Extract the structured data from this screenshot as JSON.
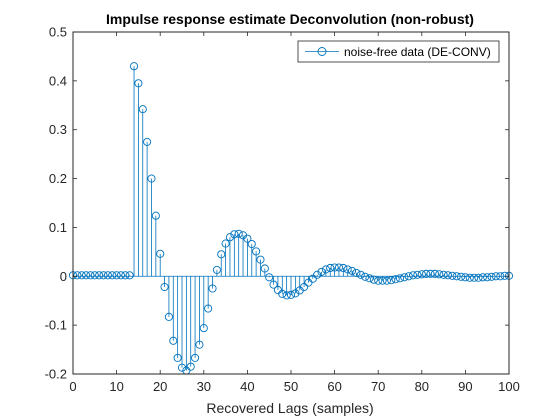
{
  "chart_data": {
    "type": "stem",
    "title": "Impulse response estimate Deconvolution (non-robust)",
    "xlabel": "Recovered Lags (samples)",
    "ylabel": "",
    "xlim": [
      0,
      100
    ],
    "ylim": [
      -0.2,
      0.5
    ],
    "x_ticks": [
      "0",
      "10",
      "20",
      "30",
      "40",
      "50",
      "60",
      "70",
      "80",
      "90",
      "100"
    ],
    "y_ticks": [
      "-0.2",
      "-0.1",
      "0",
      "0.1",
      "0.2",
      "0.3",
      "0.4",
      "0.5"
    ],
    "grid": false,
    "legend_position": "top-right",
    "series": [
      {
        "name": "noise-free data (DE-CONV)",
        "color": "#0072BD",
        "marker": "circle-open",
        "x": [
          0,
          1,
          2,
          3,
          4,
          5,
          6,
          7,
          8,
          9,
          10,
          11,
          12,
          13,
          14,
          15,
          16,
          17,
          18,
          19,
          20,
          21,
          22,
          23,
          24,
          25,
          26,
          27,
          28,
          29,
          30,
          31,
          32,
          33,
          34,
          35,
          36,
          37,
          38,
          39,
          40,
          41,
          42,
          43,
          44,
          45,
          46,
          47,
          48,
          49,
          50,
          51,
          52,
          53,
          54,
          55,
          56,
          57,
          58,
          59,
          60,
          61,
          62,
          63,
          64,
          65,
          66,
          67,
          68,
          69,
          70,
          71,
          72,
          73,
          74,
          75,
          76,
          77,
          78,
          79,
          80,
          81,
          82,
          83,
          84,
          85,
          86,
          87,
          88,
          89,
          90,
          91,
          92,
          93,
          94,
          95,
          96,
          97,
          98,
          99,
          100
        ],
        "values": [
          0.002,
          0.002,
          0.002,
          0.002,
          0.002,
          0.002,
          0.002,
          0.002,
          0.002,
          0.002,
          0.002,
          0.002,
          0.002,
          0.002,
          0.43,
          0.395,
          0.342,
          0.275,
          0.2,
          0.124,
          0.046,
          -0.022,
          -0.083,
          -0.132,
          -0.167,
          -0.187,
          -0.193,
          -0.185,
          -0.167,
          -0.14,
          -0.106,
          -0.066,
          -0.025,
          0.013,
          0.045,
          0.067,
          0.08,
          0.086,
          0.087,
          0.084,
          0.077,
          0.066,
          0.051,
          0.034,
          0.016,
          -0.002,
          -0.017,
          -0.028,
          -0.036,
          -0.039,
          -0.038,
          -0.035,
          -0.029,
          -0.022,
          -0.013,
          -0.005,
          0.003,
          0.009,
          0.014,
          0.017,
          0.018,
          0.018,
          0.017,
          0.014,
          0.011,
          0.007,
          0.003,
          -0.001,
          -0.004,
          -0.007,
          -0.009,
          -0.009,
          -0.009,
          -0.008,
          -0.006,
          -0.004,
          -0.002,
          0.0,
          0.002,
          0.003,
          0.004,
          0.005,
          0.005,
          0.005,
          0.004,
          0.003,
          0.002,
          0.001,
          0.0,
          -0.001,
          -0.002,
          -0.003,
          -0.003,
          -0.003,
          -0.002,
          -0.002,
          -0.001,
          0.0,
          0.0,
          0.001,
          0.001
        ]
      }
    ]
  }
}
